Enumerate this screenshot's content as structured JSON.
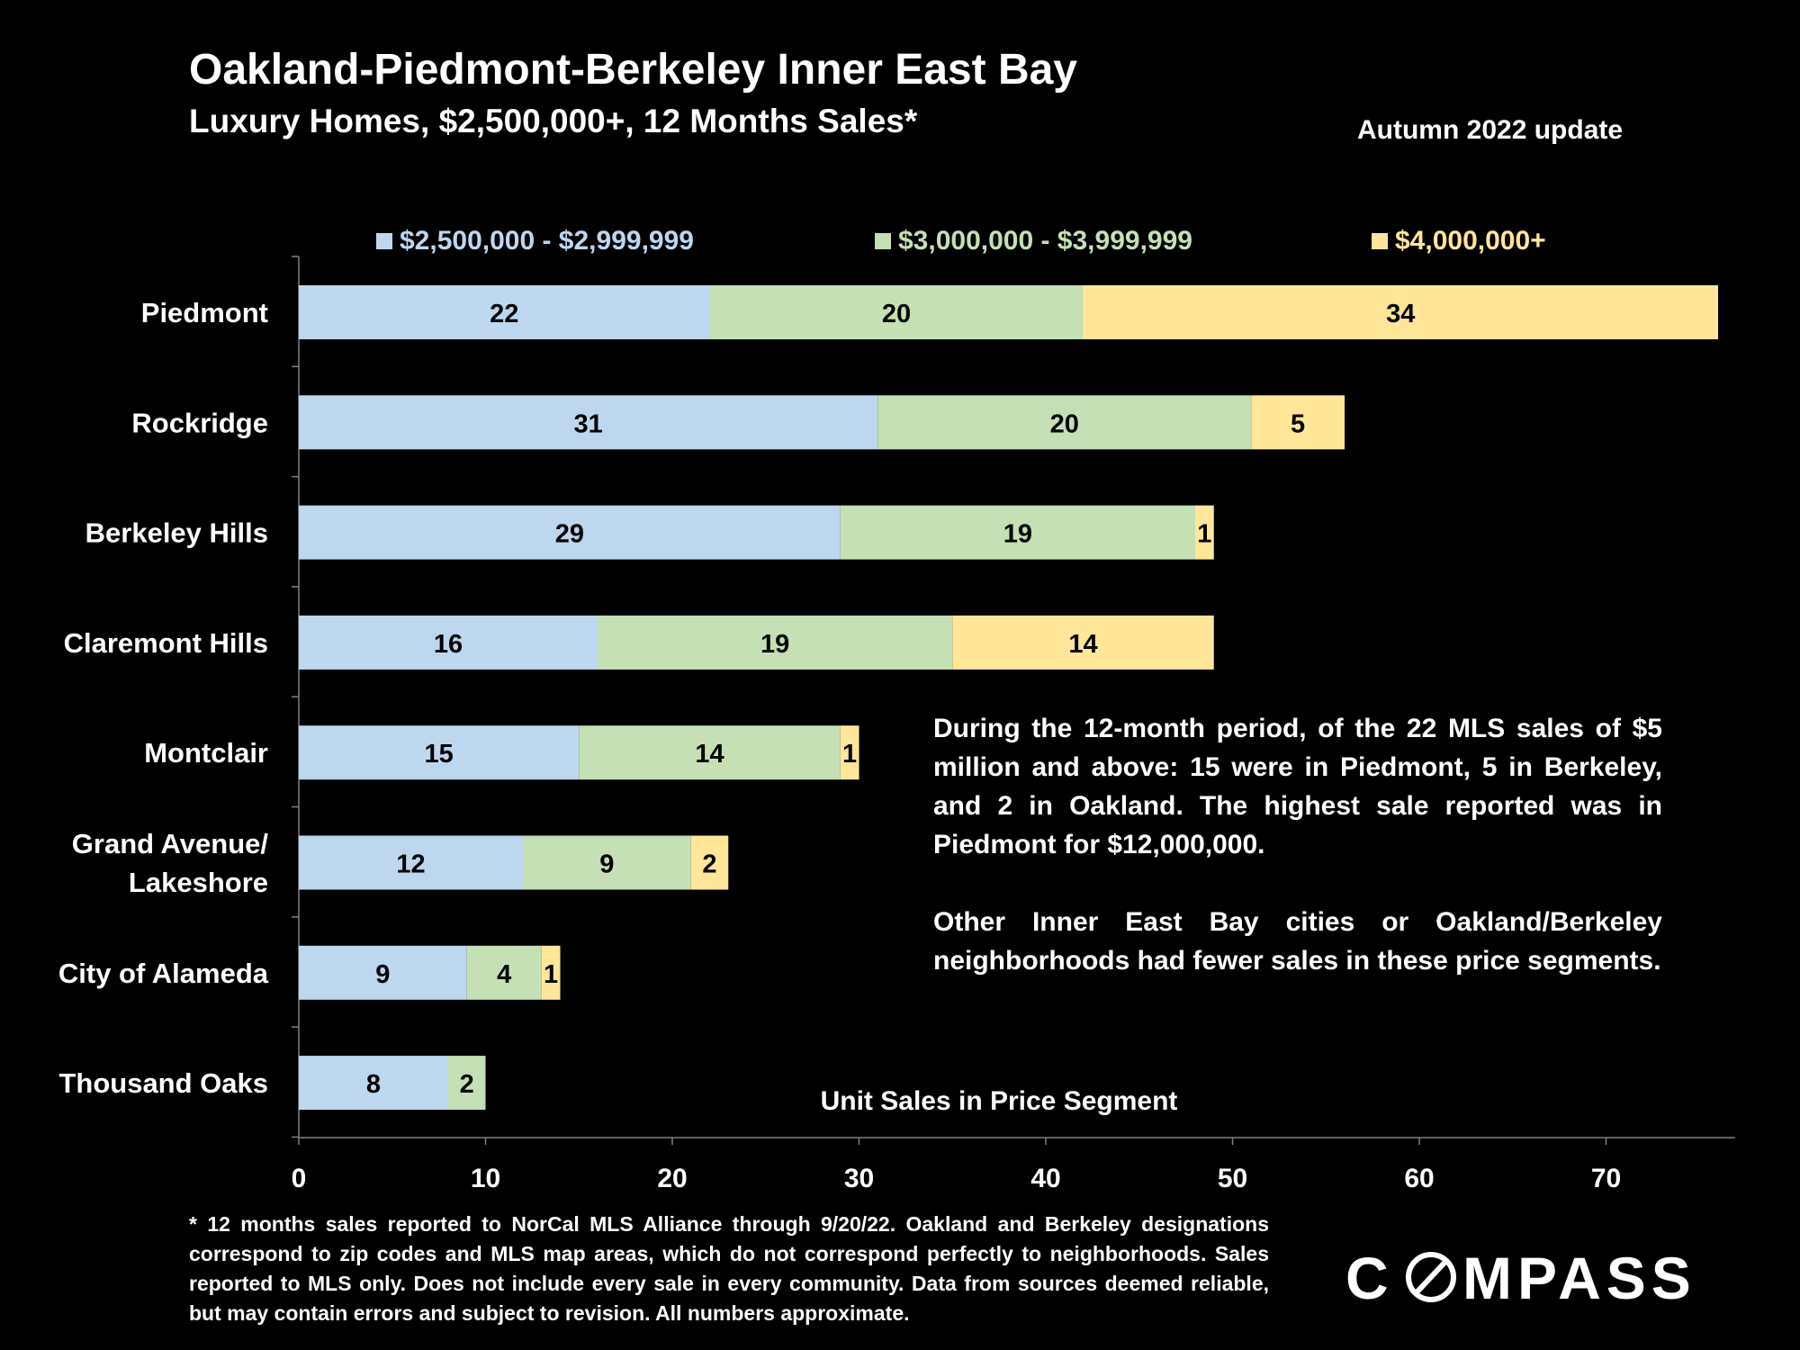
{
  "header": {
    "title": "Oakland-Piedmont-Berkeley Inner East Bay",
    "subtitle": "Luxury Homes, $2,500,000+, 12 Months Sales*",
    "update": "Autumn 2022 update"
  },
  "chart_data": {
    "type": "bar",
    "orientation": "horizontal",
    "stacked": true,
    "categories": [
      "Piedmont",
      "Rockridge",
      "Berkeley Hills",
      "Claremont Hills",
      "Montclair",
      "Grand Avenue/ Lakeshore",
      "City of Alameda",
      "Thousand Oaks"
    ],
    "category_lines": [
      [
        "Piedmont"
      ],
      [
        "Rockridge"
      ],
      [
        "Berkeley Hills"
      ],
      [
        "Claremont Hills"
      ],
      [
        "Montclair"
      ],
      [
        "Grand Avenue/",
        "Lakeshore"
      ],
      [
        "City of Alameda"
      ],
      [
        "Thousand Oaks"
      ]
    ],
    "series": [
      {
        "name": "$2,500,000 - $2,999,999",
        "color": "#bdd7ee",
        "values": [
          22,
          31,
          29,
          16,
          15,
          12,
          9,
          8
        ]
      },
      {
        "name": "$3,000,000 - $3,999,999",
        "color": "#c5e0b4",
        "values": [
          20,
          20,
          19,
          19,
          14,
          9,
          4,
          2
        ]
      },
      {
        "name": "$4,000,000+",
        "color": "#ffe699",
        "values": [
          34,
          5,
          1,
          14,
          1,
          2,
          1,
          null
        ]
      }
    ],
    "xlabel": "Unit Sales in Price Segment",
    "ylabel": "",
    "xlim": [
      0,
      77
    ],
    "xticks": [
      0,
      10,
      20,
      30,
      40,
      50,
      60,
      70
    ],
    "legend_position": "top",
    "grid": false,
    "data_labels": true
  },
  "notes": {
    "paragraph1": "During the 12-month period, of the 22 MLS sales of $5 million and above: 15 were in Piedmont, 5 in Berkeley, and 2 in Oakland. The highest sale reported was in Piedmont for $12,000,000.",
    "paragraph2": "Other Inner East Bay cities or Oakland/Berkeley neighborhoods had fewer sales in these price segments."
  },
  "footnote": "* 12 months sales reported to NorCal MLS Alliance through 9/20/22. Oakland and Berkeley designations correspond to zip codes and MLS map areas, which do not correspond perfectly to neighborhoods. Sales reported to MLS only. Does not include every sale in every community. Data from sources deemed reliable, but may contain errors and subject to revision. All numbers approximate.",
  "logo": {
    "text": "COMPASS"
  }
}
